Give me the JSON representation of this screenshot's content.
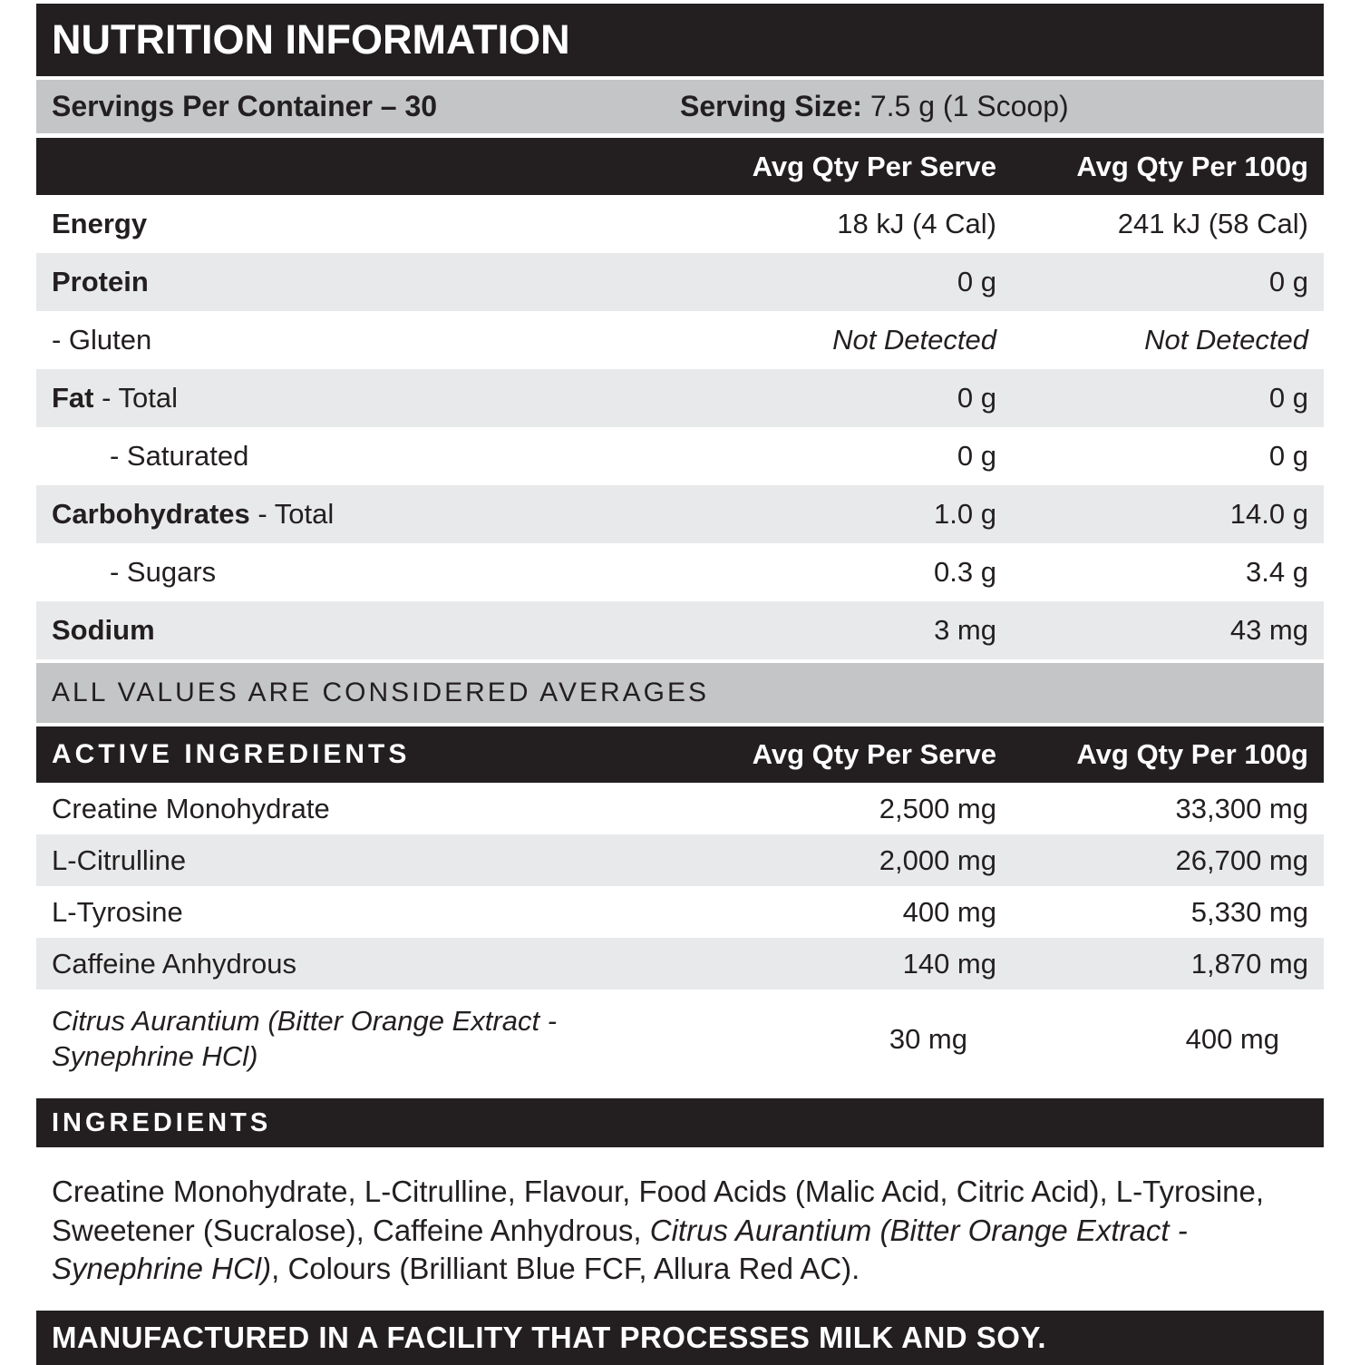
{
  "label": {
    "title": "NUTRITION INFORMATION",
    "servings_per_container": "Servings Per Container – 30",
    "serving_size_label": "Serving Size:",
    "serving_size_value": " 7.5 g (1 Scoop)",
    "col_serve": "Avg Qty Per Serve",
    "col_100g": "Avg Qty Per 100g",
    "rows": [
      {
        "bold": "Energy",
        "rest": "",
        "serve": "18 kJ (4 Cal)",
        "per100": "241 kJ (58 Cal)"
      },
      {
        "bold": "Protein",
        "rest": "",
        "serve": "0 g",
        "per100": "0 g"
      },
      {
        "bold": "",
        "rest": "- Gluten",
        "serve": "Not Detected",
        "per100": "Not Detected"
      },
      {
        "bold": "Fat",
        "rest": " - Total",
        "serve": "0 g",
        "per100": "0 g"
      },
      {
        "bold": "",
        "rest": "- Saturated",
        "serve": "0 g",
        "per100": "0 g"
      },
      {
        "bold": "Carbohydrates",
        "rest": " - Total",
        "serve": "1.0 g",
        "per100": "14.0 g"
      },
      {
        "bold": "",
        "rest": "- Sugars",
        "serve": "0.3 g",
        "per100": "3.4 g"
      },
      {
        "bold": "Sodium",
        "rest": "",
        "serve": "3 mg",
        "per100": "43 mg"
      }
    ],
    "averages_note": "ALL VALUES ARE CONSIDERED AVERAGES",
    "active_header": "ACTIVE INGREDIENTS",
    "active_rows": [
      {
        "name": "Creatine Monohydrate",
        "serve": "2,500 mg",
        "per100": "33,300 mg"
      },
      {
        "name": "L-Citrulline",
        "serve": "2,000 mg",
        "per100": "26,700 mg"
      },
      {
        "name": "L-Tyrosine",
        "serve": "400 mg",
        "per100": "5,330 mg"
      },
      {
        "name": "Caffeine Anhydrous",
        "serve": "140 mg",
        "per100": "1,870 mg"
      },
      {
        "name": "Citrus Aurantium (Bitter Orange Extract - Synephrine HCl)",
        "serve": "30 mg",
        "per100": "400 mg"
      }
    ],
    "ingredients_header": "INGREDIENTS",
    "ingredients_text_1": "Creatine Monohydrate, L-Citrulline, Flavour, Food Acids (Malic Acid, Citric Acid), L-Tyrosine, Sweetener (Sucralose), Caffeine Anhydrous, ",
    "ingredients_text_italic": "Citrus Aurantium (Bitter Orange Extract - Synephrine HCl)",
    "ingredients_text_2": ", Colours (Brilliant Blue FCF, Allura Red AC).",
    "allergen_note": "MANUFACTURED IN A FACILITY THAT PROCESSES MILK AND SOY.",
    "colors": {
      "black_bar": "#231f20",
      "medium_gray_bar": "#c3c5c7",
      "light_gray_row": "#e8e9ea",
      "text": "#231f20",
      "header_text": "#ffffff"
    }
  }
}
